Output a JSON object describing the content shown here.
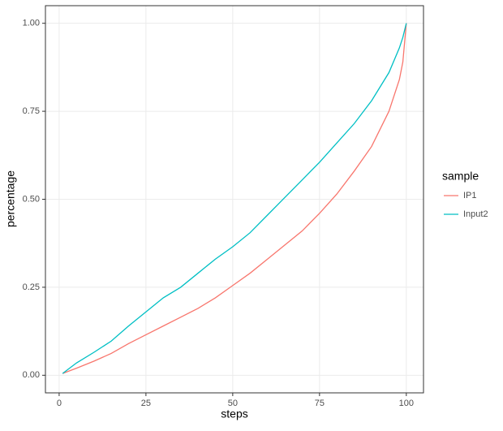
{
  "chart_data": {
    "type": "line",
    "x_label": "steps",
    "y_label": "percentage",
    "legend_title": "sample",
    "legend_position": "right",
    "x": [
      1,
      5,
      10,
      15,
      20,
      25,
      30,
      35,
      40,
      45,
      50,
      55,
      60,
      65,
      70,
      75,
      80,
      85,
      90,
      95,
      98,
      99,
      100
    ],
    "series": [
      {
        "name": "IP1",
        "color": "#f8766d",
        "values": [
          0.005,
          0.02,
          0.04,
          0.062,
          0.09,
          0.115,
          0.14,
          0.165,
          0.19,
          0.22,
          0.255,
          0.29,
          0.33,
          0.37,
          0.41,
          0.46,
          0.515,
          0.58,
          0.65,
          0.75,
          0.84,
          0.89,
          1.0
        ]
      },
      {
        "name": "Input2",
        "color": "#00bfc4",
        "values": [
          0.005,
          0.035,
          0.065,
          0.097,
          0.14,
          0.18,
          0.22,
          0.25,
          0.29,
          0.33,
          0.365,
          0.405,
          0.455,
          0.505,
          0.555,
          0.605,
          0.66,
          0.715,
          0.78,
          0.86,
          0.93,
          0.96,
          1.0
        ]
      }
    ],
    "xlim": [
      -3.95,
      104.95
    ],
    "xticks": [
      0,
      25,
      50,
      75,
      100
    ],
    "ylim": [
      -0.05,
      1.05
    ],
    "yticks": [
      {
        "value": 0,
        "label": "0.00"
      },
      {
        "value": 0.25,
        "label": "0.25"
      },
      {
        "value": 0.5,
        "label": "0.50"
      },
      {
        "value": 0.75,
        "label": "0.75"
      },
      {
        "value": 1,
        "label": "1.00"
      }
    ],
    "grid": true
  }
}
